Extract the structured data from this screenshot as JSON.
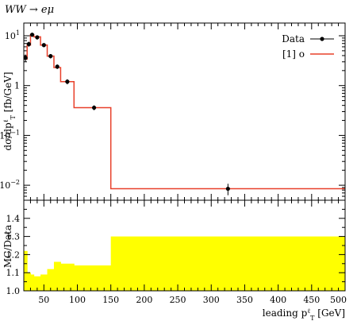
{
  "chart_data": [
    {
      "type": "line",
      "title": "WW → eμ",
      "ylabel": "dσ/dpℓT [fb/GeV]",
      "xlabel": "",
      "ylog": true,
      "xlim": [
        20,
        500
      ],
      "ylim": [
        0.005,
        18
      ],
      "yticks": [
        {
          "value": 10,
          "label": "10",
          "sup": "1"
        },
        {
          "value": 1,
          "label": "1",
          "sup": ""
        },
        {
          "value": 0.1,
          "label": "10",
          "sup": "−1"
        },
        {
          "value": 0.01,
          "label": "10",
          "sup": "−2"
        }
      ],
      "legend": {
        "position": "top-right",
        "entries": [
          "Data",
          "[1] o"
        ]
      },
      "series": [
        {
          "name": "Data",
          "kind": "points-with-errors",
          "x": [
            22.5,
            27.5,
            32.5,
            40,
            50,
            60,
            70,
            85,
            125,
            325
          ],
          "y": [
            3.6,
            6.8,
            10.5,
            9.3,
            6.5,
            3.9,
            2.4,
            1.2,
            0.36,
            0.0085
          ],
          "err": [
            0.6,
            0.8,
            1.0,
            0.9,
            0.6,
            0.4,
            0.25,
            0.14,
            0.04,
            0.0022
          ]
        },
        {
          "name": "[1] o",
          "kind": "step-histogram",
          "color": "#e8402a",
          "edges": [
            20,
            25,
            30,
            35,
            45,
            55,
            65,
            75,
            95,
            150,
            500
          ],
          "values": [
            3.4,
            6.5,
            10.5,
            9.5,
            6.5,
            3.9,
            2.3,
            1.2,
            0.36,
            0.0085
          ]
        }
      ]
    },
    {
      "type": "area",
      "ylabel": "MC/Data",
      "xlabel": "leading pℓT [GeV]",
      "xlim": [
        20,
        500
      ],
      "ylim": [
        1.0,
        1.5
      ],
      "xticks": [
        50,
        100,
        150,
        200,
        250,
        300,
        350,
        400,
        450,
        500
      ],
      "yticks": [
        1.0,
        1.1,
        1.2,
        1.3,
        1.4
      ],
      "band_color": "#ffff00",
      "series": [
        {
          "name": "",
          "kind": "ratio-band",
          "edges": [
            20,
            25,
            30,
            35,
            45,
            55,
            65,
            75,
            95,
            150,
            500
          ],
          "lower": [
            1.0,
            1.0,
            1.0,
            1.0,
            1.0,
            1.0,
            1.0,
            1.0,
            1.0,
            1.0
          ],
          "upper": [
            1.22,
            1.1,
            1.09,
            1.08,
            1.09,
            1.12,
            1.16,
            1.15,
            1.14,
            1.3
          ]
        }
      ]
    }
  ]
}
